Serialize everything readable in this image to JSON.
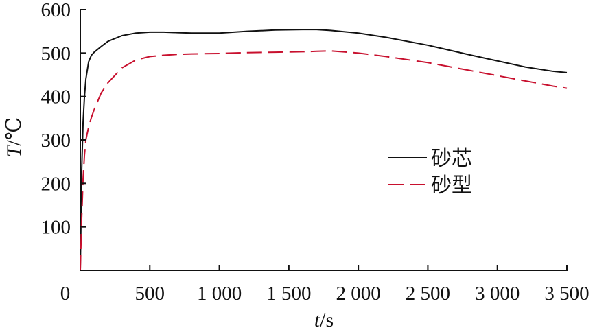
{
  "chart_data": {
    "type": "line",
    "xlabel_var": "t",
    "xlabel_unit": "/s",
    "ylabel_var": "T",
    "ylabel_unit": "/℃",
    "xlim": [
      0,
      3500
    ],
    "ylim": [
      0,
      600
    ],
    "x_ticks": [
      0,
      500,
      1000,
      1500,
      2000,
      2500,
      3000,
      3500
    ],
    "x_tick_labels": [
      "0",
      "500",
      "1 000",
      "1 500",
      "2 000",
      "2 500",
      "3 000",
      "3 500"
    ],
    "y_ticks": [
      100,
      200,
      300,
      400,
      500,
      600
    ],
    "y_tick_labels": [
      "100",
      "200",
      "300",
      "400",
      "500",
      "600"
    ],
    "grid": false,
    "legend_position": "right-center",
    "series": [
      {
        "name": "砂芯",
        "color": "#111111",
        "dash": "solid",
        "x": [
          0,
          10,
          20,
          30,
          40,
          60,
          80,
          100,
          150,
          200,
          300,
          400,
          500,
          600,
          700,
          800,
          1000,
          1200,
          1400,
          1600,
          1700,
          1800,
          2000,
          2200,
          2500,
          2800,
          3000,
          3200,
          3400,
          3500
        ],
        "y": [
          0,
          230,
          340,
          400,
          440,
          480,
          495,
          502,
          515,
          527,
          540,
          546,
          548,
          548,
          547,
          546,
          546,
          550,
          553,
          554,
          554,
          552,
          546,
          536,
          518,
          496,
          482,
          468,
          458,
          455
        ]
      },
      {
        "name": "砂型",
        "color": "#c8102e",
        "dash": "dashed",
        "x": [
          0,
          10,
          20,
          30,
          40,
          60,
          80,
          100,
          150,
          200,
          300,
          400,
          500,
          600,
          700,
          800,
          1000,
          1200,
          1400,
          1600,
          1700,
          1800,
          2000,
          2200,
          2500,
          2800,
          3000,
          3200,
          3400,
          3500
        ],
        "y": [
          0,
          120,
          210,
          265,
          300,
          330,
          352,
          370,
          408,
          432,
          466,
          484,
          492,
          495,
          497,
          498,
          499,
          501,
          502,
          503,
          504,
          505,
          500,
          492,
          478,
          460,
          448,
          436,
          424,
          419
        ]
      }
    ]
  }
}
